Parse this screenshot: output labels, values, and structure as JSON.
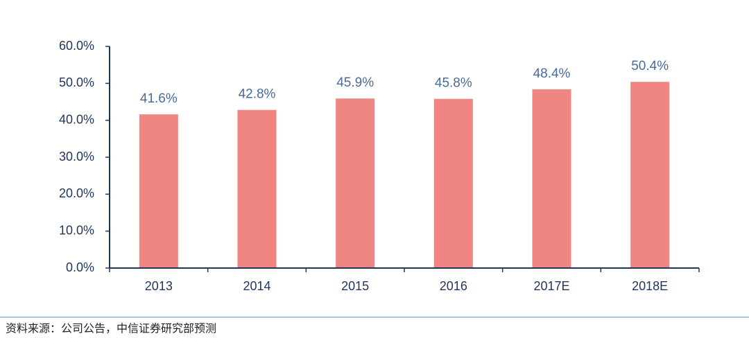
{
  "chart_data": {
    "type": "bar",
    "categories": [
      "2013",
      "2014",
      "2015",
      "2016",
      "2017E",
      "2018E"
    ],
    "values": [
      41.6,
      42.8,
      45.9,
      45.8,
      48.4,
      50.4
    ],
    "value_labels": [
      "41.6%",
      "42.8%",
      "45.9%",
      "45.8%",
      "48.4%",
      "50.4%"
    ],
    "color": "#f08682",
    "ylim": [
      0,
      60
    ],
    "yticks": [
      {
        "value": 0,
        "label": "0.0%"
      },
      {
        "value": 10,
        "label": "10.0%"
      },
      {
        "value": 20,
        "label": "20.0%"
      },
      {
        "value": 30,
        "label": "30.0%"
      },
      {
        "value": 40,
        "label": "40.0%"
      },
      {
        "value": 50,
        "label": "50.0%"
      },
      {
        "value": 60,
        "label": "60.0%"
      }
    ],
    "source": "资料来源：公司公告，中信证券研究部预测"
  }
}
